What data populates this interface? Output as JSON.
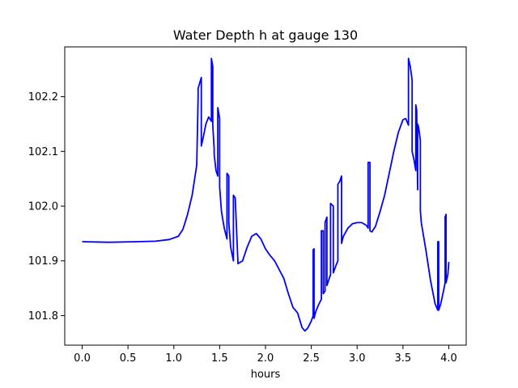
{
  "chart_data": {
    "type": "line",
    "title": "Water Depth h at gauge 130",
    "xlabel": "hours",
    "ylabel": "",
    "xlim": [
      -0.19,
      4.19
    ],
    "ylim": [
      101.746,
      102.291
    ],
    "xticks": [
      0.0,
      0.5,
      1.0,
      1.5,
      2.0,
      2.5,
      3.0,
      3.5,
      4.0
    ],
    "xtick_labels": [
      "0.0",
      "0.5",
      "1.0",
      "1.5",
      "2.0",
      "2.5",
      "3.0",
      "3.5",
      "4.0"
    ],
    "yticks": [
      101.8,
      101.9,
      102.0,
      102.1,
      102.2
    ],
    "ytick_labels": [
      "101.8",
      "101.9",
      "102.0",
      "102.1",
      "102.2"
    ],
    "grid": false,
    "series": [
      {
        "color": "#0000ff",
        "x": [
          0.0,
          0.3,
          0.6,
          0.8,
          0.95,
          1.05,
          1.1,
          1.15,
          1.2,
          1.25,
          1.265,
          1.265,
          1.3,
          1.3,
          1.32,
          1.35,
          1.38,
          1.41,
          1.41,
          1.425,
          1.425,
          1.44,
          1.44,
          1.46,
          1.48,
          1.48,
          1.5,
          1.5,
          1.52,
          1.55,
          1.58,
          1.58,
          1.6,
          1.6,
          1.62,
          1.65,
          1.65,
          1.67,
          1.7,
          1.75,
          1.8,
          1.85,
          1.9,
          1.95,
          2.0,
          2.05,
          2.1,
          2.2,
          2.25,
          2.3,
          2.35,
          2.4,
          2.43,
          2.46,
          2.5,
          2.52,
          2.52,
          2.53,
          2.53,
          2.55,
          2.58,
          2.61,
          2.61,
          2.63,
          2.63,
          2.65,
          2.65,
          2.67,
          2.67,
          2.69,
          2.71,
          2.71,
          2.74,
          2.74,
          2.77,
          2.79,
          2.79,
          2.81,
          2.83,
          2.83,
          2.85,
          2.9,
          2.95,
          3.0,
          3.05,
          3.1,
          3.12,
          3.12,
          3.14,
          3.14,
          3.16,
          3.2,
          3.25,
          3.3,
          3.35,
          3.4,
          3.45,
          3.5,
          3.53,
          3.56,
          3.56,
          3.58,
          3.6,
          3.6,
          3.62,
          3.64,
          3.64,
          3.65,
          3.66,
          3.66,
          3.67,
          3.69,
          3.69,
          3.7,
          3.75,
          3.8,
          3.85,
          3.88,
          3.88,
          3.89,
          3.89,
          3.91,
          3.93,
          3.96,
          3.96,
          3.97,
          3.97,
          3.99,
          4.0
        ],
        "y": [
          101.935,
          101.934,
          101.935,
          101.936,
          101.939,
          101.945,
          101.958,
          101.985,
          102.02,
          102.075,
          102.2,
          102.215,
          102.235,
          102.11,
          102.125,
          102.15,
          102.163,
          102.155,
          102.27,
          102.255,
          102.148,
          102.105,
          102.095,
          102.065,
          102.055,
          102.18,
          102.16,
          102.035,
          101.99,
          101.96,
          101.94,
          102.06,
          102.055,
          101.97,
          101.925,
          101.9,
          102.02,
          102.015,
          101.895,
          101.9,
          101.925,
          101.945,
          101.95,
          101.94,
          101.922,
          101.91,
          101.9,
          101.868,
          101.84,
          101.815,
          101.805,
          101.778,
          101.772,
          101.777,
          101.79,
          101.8,
          101.92,
          101.922,
          101.795,
          101.808,
          101.82,
          101.83,
          101.955,
          101.955,
          101.84,
          101.845,
          101.97,
          101.98,
          101.855,
          101.865,
          101.875,
          102.005,
          102.0,
          101.878,
          101.892,
          101.9,
          102.04,
          102.045,
          102.055,
          101.932,
          101.945,
          101.96,
          101.968,
          101.97,
          101.97,
          101.965,
          101.96,
          102.08,
          102.08,
          101.955,
          101.953,
          101.963,
          101.99,
          102.02,
          102.06,
          102.1,
          102.135,
          102.158,
          102.16,
          102.148,
          102.27,
          102.255,
          102.23,
          102.1,
          102.085,
          102.065,
          102.185,
          102.175,
          102.03,
          102.15,
          102.145,
          102.12,
          101.992,
          101.97,
          101.92,
          101.865,
          101.822,
          101.81,
          101.935,
          101.935,
          101.81,
          101.82,
          101.835,
          101.86,
          101.98,
          101.985,
          101.86,
          101.875,
          101.898
        ]
      }
    ]
  }
}
